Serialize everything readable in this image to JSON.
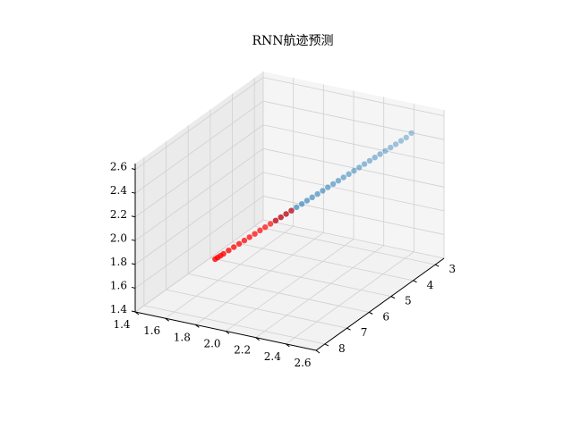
{
  "chart_data": {
    "type": "scatter",
    "title": "RNN航迹预测",
    "xlabel": "",
    "ylabel": "",
    "zlabel": "",
    "grid": true,
    "xlim": [
      1.4,
      2.6
    ],
    "ylim": [
      2.6,
      8.4
    ],
    "zlim": [
      1.4,
      2.65
    ],
    "x_ticks": [
      "1.4",
      "1.6",
      "1.8",
      "2.0",
      "2.2",
      "2.4",
      "2.6"
    ],
    "y_ticks": [
      "3",
      "4",
      "5",
      "6",
      "7",
      "8"
    ],
    "z_ticks": [
      "1.4",
      "1.6",
      "1.8",
      "2.0",
      "2.2",
      "2.4",
      "2.6"
    ],
    "series": [
      {
        "color": "#1f77b4",
        "points": [
          {
            "x": 2.42,
            "y": 2.85,
            "z": 2.44
          },
          {
            "x": 2.4,
            "y": 2.95,
            "z": 2.41
          },
          {
            "x": 2.38,
            "y": 3.05,
            "z": 2.39
          },
          {
            "x": 2.36,
            "y": 3.15,
            "z": 2.37
          },
          {
            "x": 2.34,
            "y": 3.25,
            "z": 2.35
          },
          {
            "x": 2.32,
            "y": 3.35,
            "z": 2.33
          },
          {
            "x": 2.3,
            "y": 3.45,
            "z": 2.31
          },
          {
            "x": 2.28,
            "y": 3.55,
            "z": 2.29
          },
          {
            "x": 2.26,
            "y": 3.65,
            "z": 2.27
          },
          {
            "x": 2.24,
            "y": 3.75,
            "z": 2.25
          },
          {
            "x": 2.22,
            "y": 3.85,
            "z": 2.23
          },
          {
            "x": 2.2,
            "y": 3.95,
            "z": 2.21
          },
          {
            "x": 2.18,
            "y": 4.05,
            "z": 2.19
          },
          {
            "x": 2.16,
            "y": 4.15,
            "z": 2.17
          },
          {
            "x": 2.14,
            "y": 4.25,
            "z": 2.15
          },
          {
            "x": 2.12,
            "y": 4.35,
            "z": 2.13
          },
          {
            "x": 2.1,
            "y": 4.45,
            "z": 2.11
          },
          {
            "x": 2.08,
            "y": 4.55,
            "z": 2.09
          },
          {
            "x": 2.06,
            "y": 4.65,
            "z": 2.07
          },
          {
            "x": 2.04,
            "y": 4.75,
            "z": 2.05
          },
          {
            "x": 2.02,
            "y": 4.85,
            "z": 2.03
          },
          {
            "x": 2.0,
            "y": 4.95,
            "z": 2.01
          },
          {
            "x": 1.98,
            "y": 5.05,
            "z": 1.99
          },
          {
            "x": 1.96,
            "y": 5.15,
            "z": 1.97
          },
          {
            "x": 1.94,
            "y": 5.25,
            "z": 1.95
          },
          {
            "x": 1.92,
            "y": 5.35,
            "z": 1.93
          },
          {
            "x": 1.9,
            "y": 5.45,
            "z": 1.91
          }
        ]
      },
      {
        "color": "#ff0000",
        "points": [
          {
            "x": 1.96,
            "y": 5.15,
            "z": 1.97
          },
          {
            "x": 1.94,
            "y": 5.25,
            "z": 1.95
          },
          {
            "x": 1.92,
            "y": 5.35,
            "z": 1.93
          },
          {
            "x": 1.9,
            "y": 5.45,
            "z": 1.91
          },
          {
            "x": 1.88,
            "y": 5.55,
            "z": 1.89
          },
          {
            "x": 1.86,
            "y": 5.65,
            "z": 1.87
          },
          {
            "x": 1.84,
            "y": 5.75,
            "z": 1.85
          },
          {
            "x": 1.82,
            "y": 5.85,
            "z": 1.83
          },
          {
            "x": 1.8,
            "y": 5.95,
            "z": 1.81
          },
          {
            "x": 1.78,
            "y": 6.05,
            "z": 1.79
          },
          {
            "x": 1.76,
            "y": 6.15,
            "z": 1.77
          },
          {
            "x": 1.74,
            "y": 6.25,
            "z": 1.75
          },
          {
            "x": 1.72,
            "y": 6.35,
            "z": 1.73
          },
          {
            "x": 1.7,
            "y": 6.45,
            "z": 1.71
          },
          {
            "x": 1.69,
            "y": 6.52,
            "z": 1.7
          },
          {
            "x": 1.68,
            "y": 6.58,
            "z": 1.69
          },
          {
            "x": 1.67,
            "y": 6.62,
            "z": 1.68
          }
        ]
      }
    ]
  }
}
